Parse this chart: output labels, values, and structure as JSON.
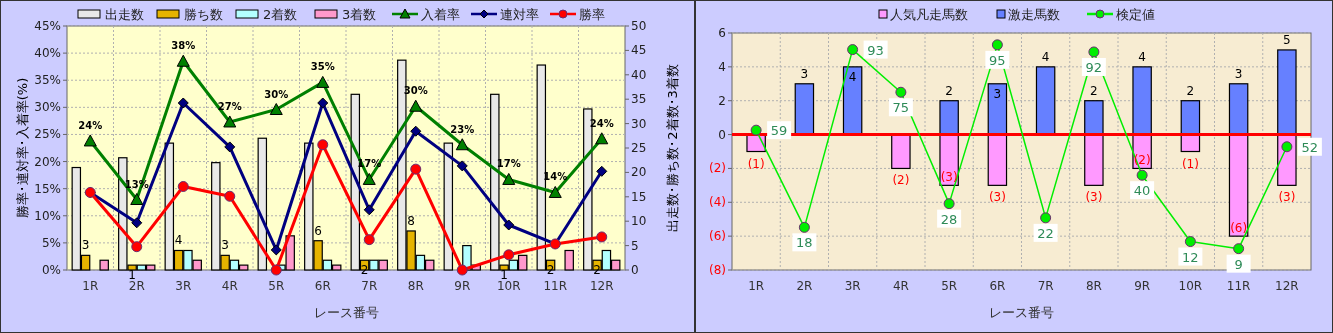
{
  "chart_data": [
    {
      "type": "bar",
      "categories": [
        "1R",
        "2R",
        "3R",
        "4R",
        "5R",
        "6R",
        "7R",
        "8R",
        "9R",
        "10R",
        "11R",
        "12R"
      ],
      "xlabel": "レース番号",
      "ylabel": "勝率･連対率･入着率(%)",
      "y2label": "出走数･勝ち数･2着数･3着数",
      "ylim": [
        0,
        45
      ],
      "yticks": [
        {
          "value": 0,
          "label": "0%"
        },
        {
          "value": 5,
          "label": "5%"
        },
        {
          "value": 10,
          "label": "10%"
        },
        {
          "value": 15,
          "label": "15%"
        },
        {
          "value": 20,
          "label": "20%"
        },
        {
          "value": 25,
          "label": "25%"
        },
        {
          "value": 30,
          "label": "30%"
        },
        {
          "value": 35,
          "label": "35%"
        },
        {
          "value": 40,
          "label": "40%"
        },
        {
          "value": 45,
          "label": "45%"
        }
      ],
      "y2lim": [
        0,
        50
      ],
      "y2ticks": [
        0,
        5,
        10,
        15,
        20,
        25,
        30,
        35,
        40,
        45,
        50
      ],
      "grid": true,
      "legend": "top",
      "series": [
        {
          "name": "出走数",
          "axis": "y2",
          "color": "#e8e8e8",
          "values": [
            21,
            23,
            26,
            22,
            27,
            26,
            36,
            43,
            26,
            36,
            42,
            33
          ]
        },
        {
          "name": "勝ち数",
          "axis": "y2",
          "color": "#e6b400",
          "values": [
            3,
            1,
            4,
            3,
            0,
            6,
            2,
            8,
            0,
            1,
            2,
            2
          ],
          "value_labels": [
            "3",
            "1",
            "4",
            "3",
            null,
            "6",
            "2",
            "8",
            null,
            "1",
            "2",
            "2"
          ]
        },
        {
          "name": "2着数",
          "axis": "y2",
          "color": "#b3ffff",
          "values": [
            0,
            1,
            4,
            2,
            1,
            2,
            2,
            3,
            5,
            2,
            0,
            4
          ]
        },
        {
          "name": "3着数",
          "axis": "y2",
          "color": "#ff99cc",
          "values": [
            2,
            1,
            2,
            1,
            7,
            1,
            2,
            2,
            1,
            3,
            4,
            2
          ]
        },
        {
          "name": "入着率",
          "type": "line",
          "color": "#008000",
          "marker": "triangle",
          "values": [
            23.8,
            13.0,
            38.5,
            27.3,
            29.6,
            34.6,
            16.7,
            30.2,
            23.1,
            16.7,
            14.3,
            24.2
          ],
          "value_labels": [
            "24%",
            "13%",
            "38%",
            "27%",
            "30%",
            "35%",
            "17%",
            "30%",
            "23%",
            "17%",
            "14%",
            "24%"
          ]
        },
        {
          "name": "連対率",
          "type": "line",
          "color": "#000080",
          "marker": "diamond",
          "values": [
            14.3,
            8.7,
            30.8,
            22.7,
            3.7,
            30.8,
            11.1,
            25.6,
            19.2,
            8.3,
            4.8,
            18.2
          ]
        },
        {
          "name": "勝率",
          "type": "line",
          "color": "#ff0000",
          "marker": "circle",
          "values": [
            14.3,
            4.3,
            15.4,
            13.6,
            0,
            23.1,
            5.6,
            18.6,
            0,
            2.8,
            4.8,
            6.1
          ]
        }
      ]
    },
    {
      "type": "bar",
      "stacked": true,
      "categories": [
        "1R",
        "2R",
        "3R",
        "4R",
        "5R",
        "6R",
        "7R",
        "8R",
        "9R",
        "10R",
        "11R",
        "12R"
      ],
      "xlabel": "レース番号",
      "ylim": [
        -8,
        6
      ],
      "yticks": [
        6,
        4,
        2,
        0,
        {
          "value": -2,
          "label": "(2)"
        },
        {
          "value": -4,
          "label": "(4)"
        },
        {
          "value": -6,
          "label": "(6)"
        },
        {
          "value": -8,
          "label": "(8)"
        }
      ],
      "grid": true,
      "legend": "top",
      "series": [
        {
          "name": "人気凡走馬数",
          "color": "#ff99ff",
          "values": [
            -1,
            0,
            0,
            -2,
            -3,
            -3,
            0,
            -3,
            -2,
            -1,
            -6,
            -3
          ],
          "value_labels": [
            "(1)",
            null,
            null,
            "(2)",
            "(3)",
            "(3)",
            null,
            "(3)",
            "(2)",
            "(1)",
            "(6)",
            "(3)"
          ]
        },
        {
          "name": "激走馬数",
          "color": "#6680ff",
          "values": [
            0,
            3,
            4,
            0,
            2,
            3,
            4,
            2,
            4,
            2,
            3,
            5
          ],
          "value_labels": [
            null,
            "3",
            "4",
            null,
            "2",
            "3",
            "4",
            "2",
            "4",
            "2",
            "3",
            "5"
          ]
        },
        {
          "name": "検定値",
          "type": "line",
          "axis": "y2",
          "color": "#00ee00",
          "marker": "circle",
          "values": [
            59,
            18,
            93,
            75,
            28,
            95,
            22,
            92,
            40,
            12,
            9,
            52
          ],
          "value_labels": [
            "59",
            "18",
            "93",
            "75",
            "28",
            "95",
            "22",
            "92",
            "40",
            "12",
            "9",
            "52"
          ]
        }
      ],
      "y2lim": [
        0,
        100
      ],
      "ref_lines": [
        {
          "axis": "y",
          "value": 0,
          "color": "#ff0000"
        }
      ]
    }
  ]
}
